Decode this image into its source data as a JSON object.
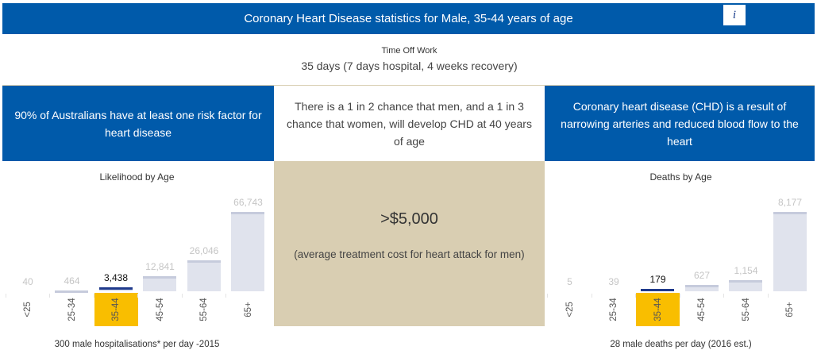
{
  "header": {
    "title": "Coronary Heart Disease statistics for Male, 35-44 years of age",
    "info_label": "i"
  },
  "time_off": {
    "label": "Time Off Work",
    "value": "35 days (7 days hospital, 4 weeks recovery)"
  },
  "facts": {
    "left": "90% of Australians have at least one risk factor for heart disease",
    "middle": "There is a 1 in 2 chance that men, and a 1 in 3 chance that women, will develop CHD at 40 years of age",
    "right": "Coronary heart disease (CHD) is a result of narrowing arteries and reduced blood flow to the heart"
  },
  "cost": {
    "value": ">$5,000",
    "caption": "(average treatment cost for heart attack for men)"
  },
  "colors": {
    "brand_blue": "#005aaa",
    "beige": "#d9ceb2",
    "highlight": "#f9be00",
    "selected_bar_top": "#1f3a8c",
    "bar_fill": "#e0e3ed"
  },
  "chart_data": [
    {
      "type": "bar",
      "title": "Likelihood by Age",
      "categories": [
        "<25",
        "25-34",
        "35-44",
        "45-54",
        "55-64",
        "65+"
      ],
      "values": [
        40,
        464,
        3438,
        12841,
        26046,
        66743
      ],
      "value_labels": [
        "40",
        "464",
        "3,438",
        "12,841",
        "26,046",
        "66,743"
      ],
      "highlighted": "35-44",
      "footnote": "300 male hospitalisations* per day -2015",
      "xlabel": "",
      "ylabel": "",
      "grid": false
    },
    {
      "type": "bar",
      "title": "Deaths by Age",
      "categories": [
        "<25",
        "25-34",
        "35-44",
        "45-54",
        "55-64",
        "65+"
      ],
      "values": [
        5,
        39,
        179,
        627,
        1154,
        8177
      ],
      "value_labels": [
        "5",
        "39",
        "179",
        "627",
        "1,154",
        "8,177"
      ],
      "highlighted": "35-44",
      "footnote": "28 male deaths per day (2016 est.)",
      "xlabel": "",
      "ylabel": "",
      "grid": false
    }
  ]
}
